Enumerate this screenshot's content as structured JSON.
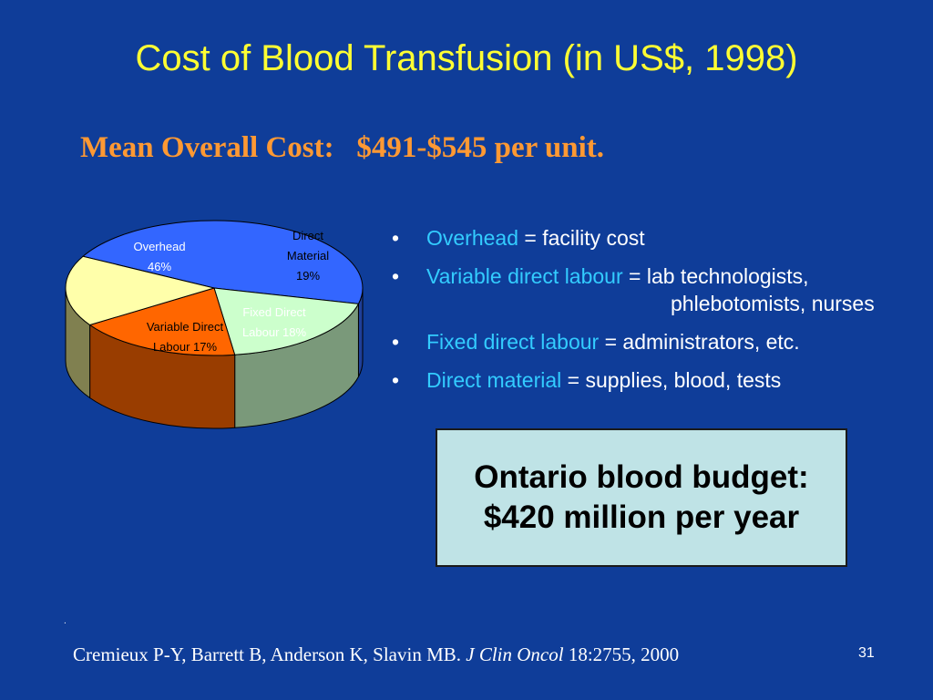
{
  "title": "Cost of Blood Transfusion (in US$, 1998)",
  "subtitle": "Mean Overall Cost:   $491-$545 per unit.",
  "chart_data": {
    "type": "pie",
    "title": "",
    "slices": [
      {
        "label_lines": [
          "Overhead",
          "46%"
        ],
        "value": 46,
        "color": "#3366ff",
        "side_color": "#1f3f99"
      },
      {
        "label_lines": [
          "Direct",
          "Material",
          "19%"
        ],
        "value": 19,
        "color": "#ccffcc",
        "side_color": "#7a997a"
      },
      {
        "label_lines": [
          "Fixed Direct",
          "Labour 18%"
        ],
        "value": 18,
        "color": "#ff6600",
        "side_color": "#993d00"
      },
      {
        "label_lines": [
          "Variable Direct",
          "Labour 17%"
        ],
        "value": 17,
        "color": "#ffffaa",
        "side_color": "#808050"
      }
    ]
  },
  "bullets": [
    {
      "term": "Overhead",
      "rest": " = facility cost",
      "cont": ""
    },
    {
      "term": "Variable direct labour",
      "rest": " = lab technologists,",
      "cont": "phlebotomists, nurses"
    },
    {
      "term": "Fixed direct labour",
      "rest": " = administrators, etc.",
      "cont": ""
    },
    {
      "term": "Direct material",
      "rest": " = supplies, blood, tests",
      "cont": ""
    }
  ],
  "bullet_char": "•",
  "budget": {
    "line1": "Ontario blood budget:",
    "line2": "$420 million per year"
  },
  "dot_mark": ".",
  "citation": {
    "authors": "Cremieux P-Y, Barrett B, Anderson K, Slavin MB. ",
    "journal": "J Clin Oncol",
    "ref": " 18:2755, 2000"
  },
  "page_number": "31"
}
